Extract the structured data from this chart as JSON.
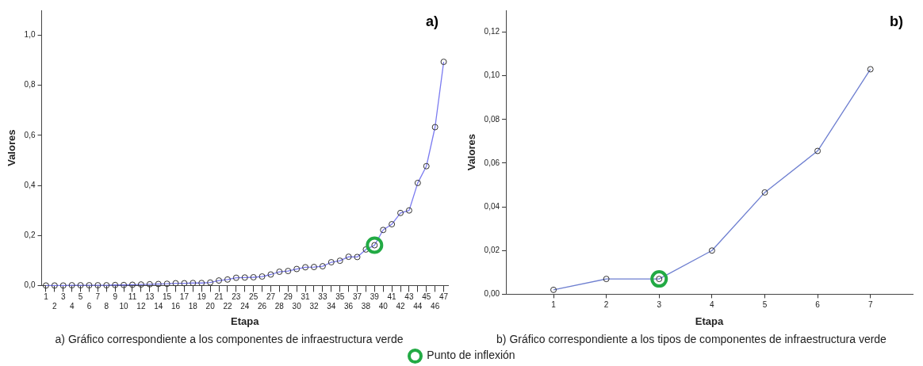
{
  "chart_data": [
    {
      "type": "line",
      "title": "a)",
      "xlabel": "Etapa",
      "ylabel": "Valores",
      "categories": [
        "1",
        "2",
        "3",
        "4",
        "5",
        "6",
        "7",
        "8",
        "9",
        "10",
        "11",
        "12",
        "13",
        "14",
        "15",
        "16",
        "17",
        "18",
        "19",
        "20",
        "21",
        "22",
        "23",
        "24",
        "25",
        "26",
        "27",
        "28",
        "29",
        "30",
        "31",
        "32",
        "33",
        "34",
        "35",
        "36",
        "37",
        "38",
        "39",
        "40",
        "41",
        "42",
        "43",
        "44",
        "45",
        "46",
        "47"
      ],
      "series": [
        {
          "color": "#7b7bf0",
          "values": [
            0.0,
            0.0,
            0.0,
            0.001,
            0.001,
            0.001,
            0.001,
            0.001,
            0.002,
            0.002,
            0.003,
            0.004,
            0.005,
            0.006,
            0.007,
            0.009,
            0.009,
            0.01,
            0.01,
            0.012,
            0.02,
            0.024,
            0.031,
            0.032,
            0.033,
            0.036,
            0.044,
            0.055,
            0.058,
            0.066,
            0.073,
            0.074,
            0.077,
            0.093,
            0.099,
            0.115,
            0.114,
            0.144,
            0.161,
            0.222,
            0.245,
            0.29,
            0.3,
            0.41,
            0.477,
            0.633,
            0.894
          ]
        },
        {
          "type": "scatter",
          "name": "Punto de inflexión",
          "color": "#22aa44",
          "x": [
            "39"
          ],
          "values": [
            0.161
          ]
        }
      ],
      "ylim": [
        0,
        1.1
      ],
      "yticks": [
        {
          "value": 0,
          "label": "0,0"
        },
        {
          "value": 0.2,
          "label": "0,2"
        },
        {
          "value": 0.4,
          "label": "0,4"
        },
        {
          "value": 0.6,
          "label": "0,6"
        },
        {
          "value": 0.8,
          "label": "0,8"
        },
        {
          "value": 1.0,
          "label": "1,0"
        }
      ],
      "marker": "circle",
      "grid": false,
      "legend": "bottom",
      "annotations": [
        "a) Gráfico correspondiente a los componentes de infraestructura verde"
      ]
    },
    {
      "type": "line",
      "title": "b)",
      "xlabel": "Etapa",
      "ylabel": "Valores",
      "x": [
        1,
        2,
        3,
        4,
        5,
        6,
        7
      ],
      "series": [
        {
          "color": "#6e7fd0",
          "values": [
            0.002,
            0.007,
            0.007,
            0.02,
            0.0466,
            0.0656,
            0.103
          ]
        },
        {
          "type": "scatter",
          "color": "#22aa44",
          "x": [
            3
          ],
          "values": [
            0.007
          ]
        }
      ],
      "xlim": [
        0.1,
        7.8
      ],
      "xticks": [
        1,
        2,
        3,
        4,
        5,
        6,
        7
      ],
      "ylim": [
        0,
        0.13
      ],
      "yticks": [
        {
          "value": 0,
          "label": "0,00"
        },
        {
          "value": 0.02,
          "label": "0,02"
        },
        {
          "value": 0.04,
          "label": "0,04"
        },
        {
          "value": 0.06,
          "label": "0,06"
        },
        {
          "value": 0.08,
          "label": "0,08"
        },
        {
          "value": 0.1,
          "label": "0,10"
        },
        {
          "value": 0.12,
          "label": "0,12"
        }
      ],
      "marker": "circle",
      "grid": false,
      "annotations": [
        "b) Gráfico correspondiente a los tipos de componentes de infraestructura verde"
      ]
    }
  ]
}
